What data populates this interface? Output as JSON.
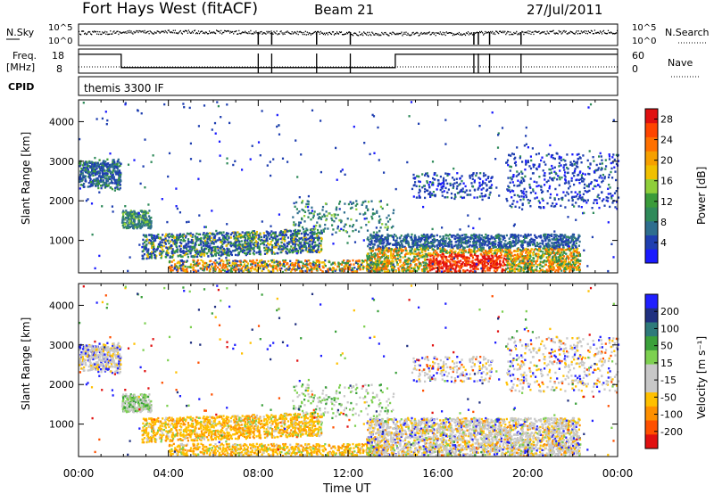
{
  "header": {
    "station": "Fort Hays West (fitACF)",
    "beam": "Beam 21",
    "date": "27/Jul/2011"
  },
  "top_panels": {
    "nsky_label": "N.Sky",
    "nsearch_label": "N.Search",
    "nsky_ticks": [
      "10^5",
      "10^0"
    ],
    "freq_label_1": "Freq.",
    "freq_label_2": "[MHz]",
    "freq_ticks": [
      "18",
      "8"
    ],
    "nave_ticks": [
      "60",
      "0"
    ],
    "nave_label": "Nave",
    "cpid_label": "CPID",
    "cpid_value": "themis 3300 IF"
  },
  "colors": {
    "power_scale": [
      "#1a1aff",
      "#1f3fb0",
      "#2e6e8e",
      "#2f8a5a",
      "#3a9b3a",
      "#8fcf3a",
      "#f0c000",
      "#f6a000",
      "#ff7000",
      "#ff4500",
      "#e01010"
    ],
    "velocity_scale": [
      "#2020ff",
      "#203080",
      "#2e7a7a",
      "#3aa03a",
      "#7dd050",
      "#c8c8c8",
      "#c8c8c8",
      "#ffc000",
      "#ff9000",
      "#ff5000",
      "#e01010"
    ]
  },
  "chart_data": [
    {
      "type": "scatter",
      "name": "N.Sky / N.Search",
      "xlabel": "",
      "ylabel": "N.Sky",
      "yscale": "log",
      "ylim": [
        1,
        100000
      ],
      "x_unit": "hours UT",
      "xlim": [
        0,
        24
      ]
    },
    {
      "type": "line",
      "name": "Freq / Nave",
      "ylabel": "Freq. [MHz]",
      "xlim": [
        0,
        24
      ],
      "ylim": [
        8,
        18
      ],
      "series": [
        {
          "name": "Freq",
          "x": [
            0,
            1.9,
            1.9,
            14.1,
            14.1,
            24
          ],
          "values": [
            16.8,
            16.8,
            10.6,
            10.6,
            16.8,
            16.8
          ]
        },
        {
          "name": "Nave",
          "x": [
            0,
            24
          ],
          "values": [
            14,
            14
          ]
        }
      ]
    },
    {
      "type": "heatmap",
      "name": "Power",
      "xlabel": "Time UT",
      "ylabel": "Slant Range [km]",
      "xlim": [
        0,
        24
      ],
      "ylim": [
        180,
        4550
      ],
      "x_ticks": [
        "00:00",
        "04:00",
        "08:00",
        "12:00",
        "16:00",
        "20:00",
        "00:00"
      ],
      "y_ticks": [
        1000,
        2000,
        3000,
        4000
      ],
      "colorbar_label": "Power [dB]",
      "colorbar_ticks": [
        4,
        8,
        12,
        16,
        20,
        24,
        28
      ],
      "colorbar_range": [
        0,
        30
      ]
    },
    {
      "type": "heatmap",
      "name": "Velocity",
      "xlabel": "Time UT",
      "ylabel": "Slant Range [km]",
      "xlim": [
        0,
        24
      ],
      "ylim": [
        180,
        4550
      ],
      "x_ticks": [
        "00:00",
        "04:00",
        "08:00",
        "12:00",
        "16:00",
        "20:00",
        "00:00"
      ],
      "y_ticks": [
        1000,
        2000,
        3000,
        4000
      ],
      "colorbar_label": "Velocity [m s⁻¹]",
      "colorbar_ticks": [
        "200",
        "100",
        "50",
        "15",
        "-15",
        "-50",
        "-100",
        "-200"
      ]
    }
  ],
  "axes": {
    "slant_label": "Slant Range [km]",
    "time_label": "Time UT",
    "power_cb_label": "Power [dB]",
    "velocity_cb_label": "Velocity [m s⁻¹]"
  }
}
